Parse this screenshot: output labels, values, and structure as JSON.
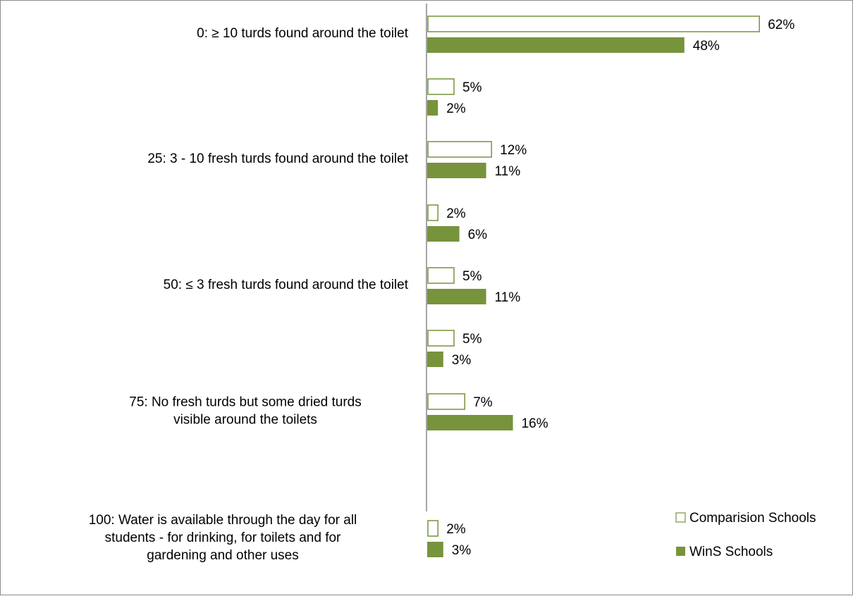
{
  "chart_data": {
    "type": "bar",
    "orientation": "horizontal",
    "title": "",
    "xlabel": "",
    "ylabel": "",
    "xlim": [
      0,
      70
    ],
    "grid": false,
    "legend_position": "bottom-right",
    "categories": [
      "0: ≥ 10 turds found around the toilet",
      "",
      "25: 3 - 10 fresh turds found around the toilet",
      "",
      "50: ≤ 3 fresh turds found around the toilet",
      "",
      "75: No fresh turds but some dried turds visible around the toilets",
      "100: Water is available through the day for all students - for drinking, for toilets and for gardening and other uses"
    ],
    "series": [
      {
        "name": "Comparision Schools",
        "style": "outline",
        "color": "#77933C",
        "values": [
          62,
          5,
          12,
          2,
          5,
          5,
          7,
          2
        ],
        "labels": [
          "62%",
          "5%",
          "12%",
          "2%",
          "5%",
          "5%",
          "7%",
          "2%"
        ]
      },
      {
        "name": "WinS Schools",
        "style": "filled",
        "color": "#77933C",
        "values": [
          48,
          2,
          11,
          6,
          11,
          3,
          16,
          3
        ],
        "labels": [
          "48%",
          "2%",
          "11%",
          "6%",
          "11%",
          "3%",
          "16%",
          "3%"
        ]
      }
    ]
  }
}
